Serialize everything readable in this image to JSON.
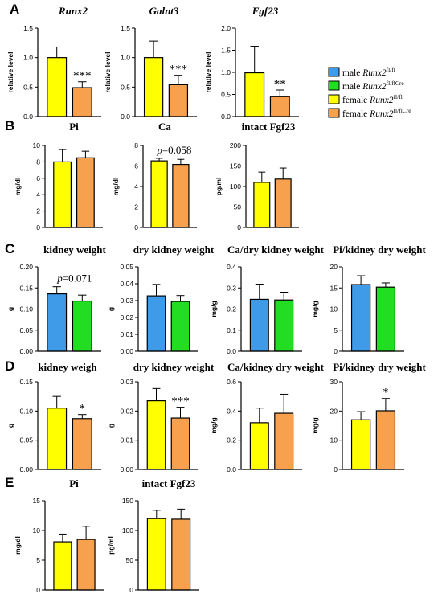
{
  "panel_letters": [
    "A",
    "B",
    "C",
    "D",
    "E"
  ],
  "colors": {
    "blue": "#3f9ae8",
    "green": "#22dd22",
    "yellow": "#ffff00",
    "orange": "#f7a04e"
  },
  "legend": {
    "entries": [
      {
        "prefix": "male",
        "gene": "Runx2",
        "sup": "fl/fl",
        "color": "blue"
      },
      {
        "prefix": "male",
        "gene": "Runx2",
        "sup": "fl/flCre",
        "color": "green"
      },
      {
        "prefix": "female",
        "gene": "Runx2",
        "sup": "fl/fl",
        "color": "yellow"
      },
      {
        "prefix": "female",
        "gene": "Runx2",
        "sup": "fl/flCre",
        "color": "orange"
      }
    ]
  },
  "chart_data": [
    {
      "panel": "A",
      "type": "bar",
      "title": "Runx2",
      "title_italic": true,
      "ylabel": "relative level",
      "ylim": [
        0,
        1.5
      ],
      "yticks": [
        "0.0",
        "0.5",
        "1.0",
        "1.5"
      ],
      "values": [
        1.0,
        0.49
      ],
      "errors": [
        0.18,
        0.1
      ],
      "colors": [
        "yellow",
        "orange"
      ],
      "annotation": "***"
    },
    {
      "panel": "A",
      "type": "bar",
      "title": "Galnt3",
      "title_italic": true,
      "ylabel": "relative level",
      "ylim": [
        0,
        1.5
      ],
      "yticks": [
        "0.0",
        "0.5",
        "1.0",
        "1.5"
      ],
      "values": [
        1.0,
        0.54
      ],
      "errors": [
        0.28,
        0.16
      ],
      "colors": [
        "yellow",
        "orange"
      ],
      "annotation": "***"
    },
    {
      "panel": "A",
      "type": "bar",
      "title": "Fgf23",
      "title_italic": true,
      "ylabel": "relative level",
      "ylim": [
        0,
        2.0
      ],
      "yticks": [
        "0.0",
        "0.5",
        "1.0",
        "1.5",
        "2.0"
      ],
      "values": [
        0.99,
        0.45
      ],
      "errors": [
        0.6,
        0.15
      ],
      "colors": [
        "yellow",
        "orange"
      ],
      "annotation": "**"
    },
    {
      "panel": "B",
      "type": "bar",
      "title": "Pi",
      "title_italic": false,
      "ylabel": "mg/dl",
      "ylim": [
        0,
        10
      ],
      "yticks": [
        "0",
        "2",
        "4",
        "6",
        "8",
        "10"
      ],
      "values": [
        8.0,
        8.5
      ],
      "errors": [
        1.5,
        0.8
      ],
      "colors": [
        "yellow",
        "orange"
      ],
      "annotation": ""
    },
    {
      "panel": "B",
      "type": "bar",
      "title": "Ca",
      "title_italic": false,
      "ylabel": "mg/dl",
      "ylim": [
        0,
        8
      ],
      "yticks": [
        "0",
        "2",
        "4",
        "6",
        "8"
      ],
      "values": [
        6.5,
        6.15
      ],
      "errors": [
        0.25,
        0.5
      ],
      "colors": [
        "yellow",
        "orange"
      ],
      "annotation": "p=0.058"
    },
    {
      "panel": "B",
      "type": "bar",
      "title": "intact Fgf23",
      "title_italic": false,
      "ylabel": "pg/ml",
      "ylim": [
        0,
        200
      ],
      "yticks": [
        "0",
        "50",
        "100",
        "150",
        "200"
      ],
      "values": [
        110,
        118
      ],
      "errors": [
        25,
        27
      ],
      "colors": [
        "yellow",
        "orange"
      ],
      "annotation": ""
    },
    {
      "panel": "C",
      "type": "bar",
      "title": "kidney weight",
      "title_italic": false,
      "ylabel": "g",
      "ylim": [
        0,
        0.2
      ],
      "yticks": [
        "0.00",
        "0.05",
        "0.10",
        "0.15",
        "0.20"
      ],
      "values": [
        0.136,
        0.119
      ],
      "errors": [
        0.017,
        0.014
      ],
      "colors": [
        "blue",
        "green"
      ],
      "annotation": "p=0.071"
    },
    {
      "panel": "C",
      "type": "bar",
      "title": "dry kidney weight",
      "title_italic": false,
      "ylabel": "g",
      "ylim": [
        0,
        0.05
      ],
      "yticks": [
        "0.00",
        "0.01",
        "0.02",
        "0.03",
        "0.04",
        "0.05"
      ],
      "values": [
        0.0328,
        0.0295
      ],
      "errors": [
        0.0068,
        0.0035
      ],
      "colors": [
        "blue",
        "green"
      ],
      "annotation": ""
    },
    {
      "panel": "C",
      "type": "bar",
      "title": "Ca/dry kidney weight",
      "title_italic": false,
      "ylabel": "mg/g",
      "ylim": [
        0,
        0.4
      ],
      "yticks": [
        "0.0",
        "0.1",
        "0.2",
        "0.3",
        "0.4"
      ],
      "values": [
        0.246,
        0.243
      ],
      "errors": [
        0.072,
        0.037
      ],
      "colors": [
        "blue",
        "green"
      ],
      "annotation": ""
    },
    {
      "panel": "C",
      "type": "bar",
      "title": "Pi/kidney dry weight",
      "title_italic": false,
      "ylabel": "mg/g",
      "ylim": [
        0,
        20
      ],
      "yticks": [
        "0",
        "5",
        "10",
        "15",
        "20"
      ],
      "values": [
        15.8,
        15.2
      ],
      "errors": [
        2.1,
        1.0
      ],
      "colors": [
        "blue",
        "green"
      ],
      "annotation": ""
    },
    {
      "panel": "D",
      "type": "bar",
      "title": "kidney weigh",
      "title_italic": false,
      "ylabel": "g",
      "ylim": [
        0,
        0.15
      ],
      "yticks": [
        "0.00",
        "0.05",
        "0.10",
        "0.15"
      ],
      "values": [
        0.105,
        0.087
      ],
      "errors": [
        0.02,
        0.007
      ],
      "colors": [
        "yellow",
        "orange"
      ],
      "annotation": "*"
    },
    {
      "panel": "D",
      "type": "bar",
      "title": "dry kidney weight",
      "title_italic": false,
      "ylabel": "g",
      "ylim": [
        0,
        0.03
      ],
      "yticks": [
        "0.00",
        "0.01",
        "0.02",
        "0.03"
      ],
      "values": [
        0.0235,
        0.0176
      ],
      "errors": [
        0.0042,
        0.0037
      ],
      "colors": [
        "yellow",
        "orange"
      ],
      "annotation": "***"
    },
    {
      "panel": "D",
      "type": "bar",
      "title": "Ca/kidney dry weight",
      "title_italic": false,
      "ylabel": "mg/g",
      "ylim": [
        0,
        0.6
      ],
      "yticks": [
        "0.0",
        "0.2",
        "0.4",
        "0.6"
      ],
      "values": [
        0.32,
        0.385
      ],
      "errors": [
        0.1,
        0.13
      ],
      "colors": [
        "yellow",
        "orange"
      ],
      "annotation": ""
    },
    {
      "panel": "D",
      "type": "bar",
      "title": "Pi/kidney dry weight",
      "title_italic": false,
      "ylabel": "mg/g",
      "ylim": [
        0,
        30
      ],
      "yticks": [
        "0",
        "10",
        "20",
        "30"
      ],
      "values": [
        17.0,
        20.1
      ],
      "errors": [
        2.8,
        4.2
      ],
      "colors": [
        "yellow",
        "orange"
      ],
      "annotation": "*"
    },
    {
      "panel": "E",
      "type": "bar",
      "title": "Pi",
      "title_italic": false,
      "ylabel": "mg/dl",
      "ylim": [
        0,
        15
      ],
      "yticks": [
        "0",
        "5",
        "10",
        "15"
      ],
      "values": [
        8.1,
        8.5
      ],
      "errors": [
        1.3,
        2.2
      ],
      "colors": [
        "yellow",
        "orange"
      ],
      "annotation": ""
    },
    {
      "panel": "E",
      "type": "bar",
      "title": "intact Fgf23",
      "title_italic": false,
      "ylabel": "pg/ml",
      "ylim": [
        0,
        150
      ],
      "yticks": [
        "0",
        "50",
        "100",
        "150"
      ],
      "values": [
        120,
        119
      ],
      "errors": [
        14,
        17
      ],
      "colors": [
        "yellow",
        "orange"
      ],
      "annotation": ""
    }
  ]
}
